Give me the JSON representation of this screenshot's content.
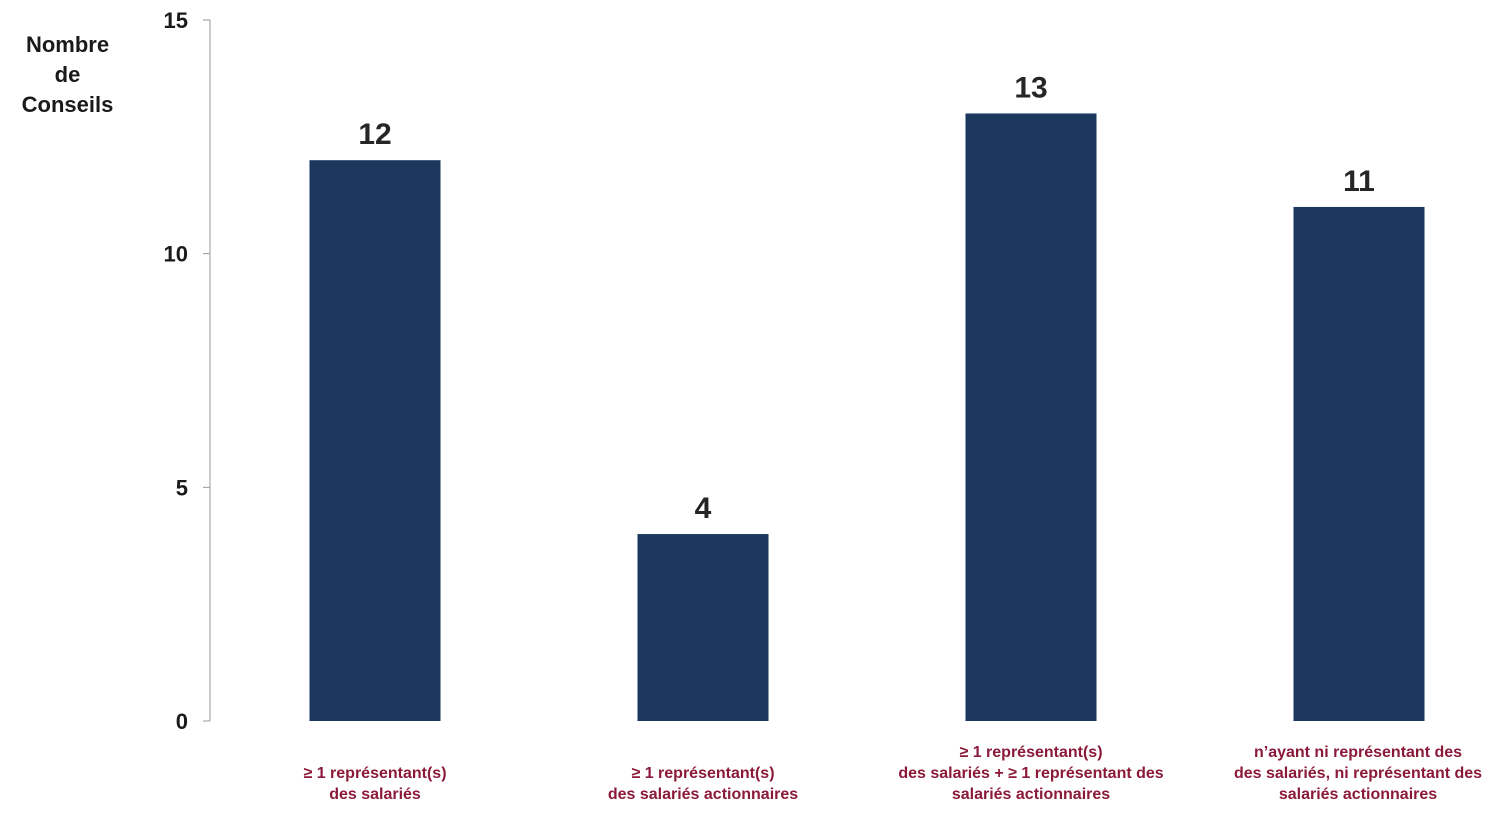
{
  "chart_data": {
    "type": "bar",
    "ylabel": "Nombre\nde\nConseils",
    "xlabel": "",
    "ylim": [
      0,
      15
    ],
    "yticks": [
      0,
      5,
      10,
      15
    ],
    "grid": false,
    "categories": [
      "≥ 1 représentant(s)\ndes salariés",
      "≥ 1 représentant(s)\ndes salariés actionnaires",
      "≥ 1 représentant(s)\ndes salariés +  ≥ 1 représentant des\nsalariés actionnaires",
      "n’ayant ni représentant des\ndes salariés, ni représentant des\nsalariés actionnaires"
    ],
    "values": [
      12,
      4,
      13,
      11
    ],
    "bar_color": "#1b375e",
    "label_color": "#8b1a3a",
    "value_label_color": "#262626",
    "axis_color": "#999999"
  }
}
